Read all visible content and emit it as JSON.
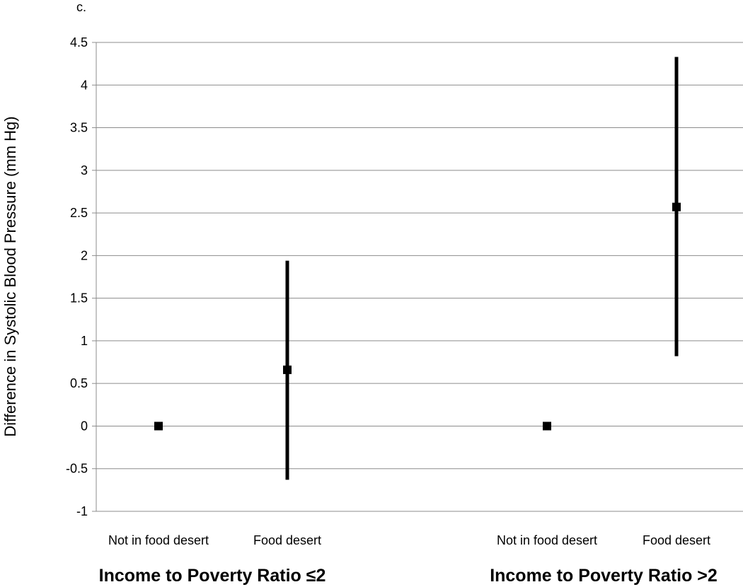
{
  "chart_data": {
    "type": "scatter",
    "panel_label": "c.",
    "ylabel": "Difference in Systolic Blood Pressure (mm Hg)",
    "ylim": [
      -1,
      4.5
    ],
    "yticks": [
      -1,
      -0.5,
      0,
      0.5,
      1,
      1.5,
      2,
      2.5,
      3,
      3.5,
      4,
      4.5
    ],
    "ytick_labels": [
      "-1",
      "-0.5",
      "0",
      "0.5",
      "1",
      "1.5",
      "2",
      "2.5",
      "3",
      "3.5",
      "4",
      "4.5"
    ],
    "grid": true,
    "groups": [
      {
        "label": "Income to Poverty Ratio ≤2",
        "points": [
          {
            "category": "Not in food desert",
            "value": 0,
            "lower": null,
            "upper": null
          },
          {
            "category": "Food desert",
            "value": 0.66,
            "lower": -0.63,
            "upper": 1.94
          }
        ]
      },
      {
        "label": "Income to Poverty Ratio >2",
        "points": [
          {
            "category": "Not in food desert",
            "value": 0,
            "lower": null,
            "upper": null
          },
          {
            "category": "Food desert",
            "value": 2.57,
            "lower": 0.82,
            "upper": 4.33
          }
        ]
      }
    ]
  }
}
